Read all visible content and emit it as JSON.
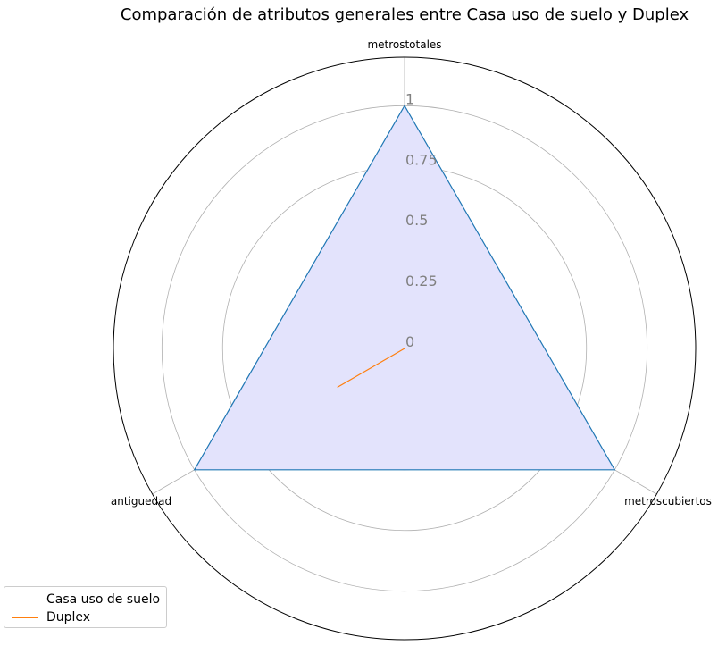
{
  "chart_data": {
    "type": "radar",
    "title": "Comparación de atributos generales entre Casa uso de suelo y Duplex",
    "axes": [
      "metrostotales",
      "metroscubiertos",
      "antiguedad"
    ],
    "rlim": [
      0,
      1.2
    ],
    "r_ticks": [
      0,
      0.25,
      0.5,
      0.75,
      1
    ],
    "r_tick_labels": [
      "0",
      "0.25",
      "0.5",
      "0.75",
      "1"
    ],
    "grid": true,
    "legend_position": "bottom-left",
    "series": [
      {
        "name": "Casa uso de suelo",
        "values": [
          1,
          1,
          1
        ],
        "color": "#1f77b4",
        "fill": "#e3e3fc"
      },
      {
        "name": "Duplex",
        "values": [
          0,
          0,
          0.32
        ],
        "color": "#ff7f0e"
      }
    ]
  }
}
